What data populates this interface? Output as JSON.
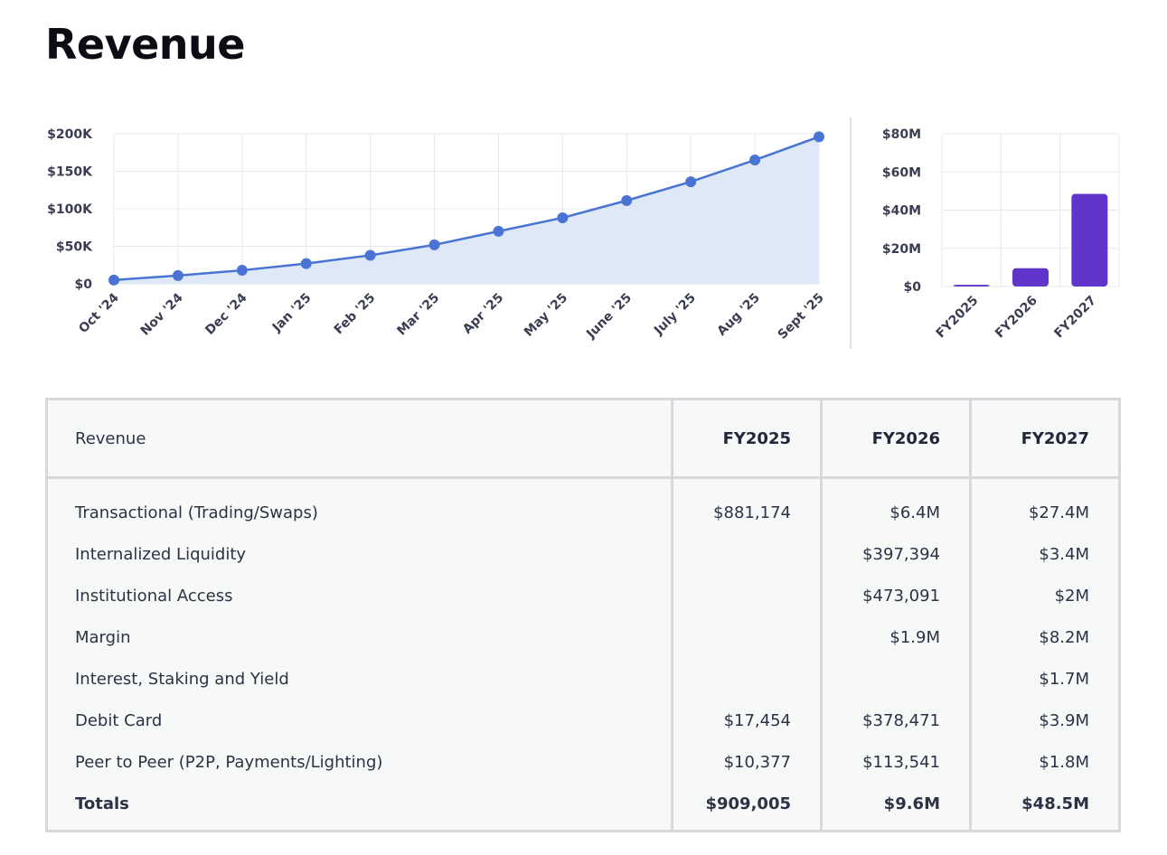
{
  "page": {
    "title": "Revenue"
  },
  "chart_data": [
    {
      "type": "area",
      "categories": [
        "Oct '24",
        "Nov '24",
        "Dec '24",
        "Jan '25",
        "Feb '25",
        "Mar '25",
        "Apr '25",
        "May '25",
        "June '25",
        "July '25",
        "Aug '25",
        "Sept '25"
      ],
      "series": [
        {
          "values": [
            5000,
            11000,
            18000,
            27000,
            38000,
            52000,
            70000,
            88000,
            111000,
            136000,
            165000,
            196000
          ]
        }
      ],
      "y_ticks": [
        "$0",
        "$50K",
        "$100K",
        "$150K",
        "$200K"
      ],
      "ylim": [
        0,
        200000
      ],
      "grid": true,
      "colors": {
        "line": "#4a74d4",
        "fill": "#dfe8f6"
      }
    },
    {
      "type": "bar",
      "categories": [
        "FY2025",
        "FY2026",
        "FY2027"
      ],
      "values": [
        909005,
        9600000,
        48500000
      ],
      "y_ticks": [
        "$0",
        "$20M",
        "$40M",
        "$60M",
        "$80M"
      ],
      "ylim": [
        0,
        80000000
      ],
      "grid": true,
      "colors": {
        "bar": "#6035c9"
      }
    }
  ],
  "table": {
    "header": [
      "Revenue",
      "FY2025",
      "FY2026",
      "FY2027"
    ],
    "rows": [
      [
        "Transactional (Trading/Swaps)",
        "$881,174",
        "$6.4M",
        "$27.4M"
      ],
      [
        "Internalized Liquidity",
        "",
        "$397,394",
        "$3.4M"
      ],
      [
        "Institutional Access",
        "",
        "$473,091",
        "$2M"
      ],
      [
        "Margin",
        "",
        "$1.9M",
        "$8.2M"
      ],
      [
        "Interest, Staking and Yield",
        "",
        "",
        "$1.7M"
      ],
      [
        "Debit Card",
        "$17,454",
        "$378,471",
        "$3.9M"
      ],
      [
        "Peer to Peer (P2P, Payments/Lighting)",
        "$10,377",
        "$113,541",
        "$1.8M"
      ]
    ],
    "totals": [
      "Totals",
      "$909,005",
      "$9.6M",
      "$48.5M"
    ]
  }
}
